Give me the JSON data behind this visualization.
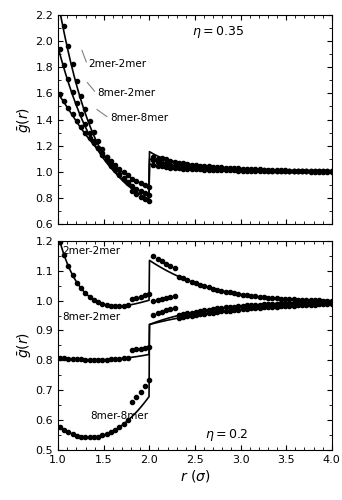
{
  "upper_panel": {
    "eta": 0.35,
    "ylim": [
      0.6,
      2.2
    ],
    "yticks": [
      0.6,
      0.8,
      1.0,
      1.2,
      1.4,
      1.6,
      1.8,
      2.0,
      2.2
    ],
    "ylabel": "$\\bar{g}(r)$",
    "eta_label": "$\\eta = 0.35$",
    "labels": {
      "2mer2mer": "2mer-2mer",
      "8mer2mer": "8mer-2mer",
      "8mer8mer": "8mer-8mer"
    },
    "label_positions": {
      "2mer2mer": [
        1.35,
        1.82
      ],
      "8mer2mer": [
        1.45,
        1.57
      ],
      "8mer8mer": [
        1.58,
        1.4
      ]
    }
  },
  "lower_panel": {
    "eta": 0.2,
    "ylim": [
      0.5,
      1.2
    ],
    "yticks": [
      0.5,
      0.6,
      0.7,
      0.8,
      0.9,
      1.0,
      1.1,
      1.2
    ],
    "ylabel": "$\\bar{g}(r)$",
    "eta_label": "$\\eta = 0.2$",
    "labels": {
      "2mer2mer": "2mer-2mer",
      "8mer2mer": "8mer-2mer",
      "8mer8mer": "8mer-8mer"
    },
    "label_positions": {
      "2mer2mer": [
        1.05,
        1.16
      ],
      "8mer2mer": [
        1.05,
        0.94
      ],
      "8mer8mer": [
        1.35,
        0.6
      ]
    }
  },
  "xlim": [
    1.0,
    4.0
  ],
  "xticks": [
    1.0,
    1.5,
    2.0,
    2.5,
    3.0,
    3.5,
    4.0
  ],
  "xlabel": "$r$ ($\\sigma$)",
  "line_color": "black",
  "dot_color": "black",
  "dot_size": 5
}
